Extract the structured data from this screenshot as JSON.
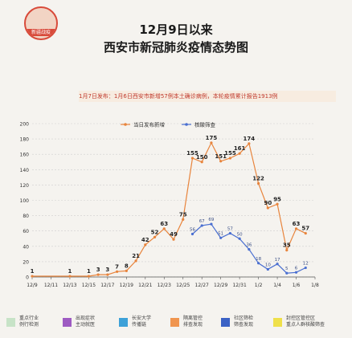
{
  "header": {
    "logo_text": "新疆战疫",
    "title_line1": "12月9日以来",
    "title_line2": "西安市新冠肺炎疫情态势图"
  },
  "notice": "1月7日发布：1月6日西安市新增57例本土确诊病例，本轮疫情累计报告1913例",
  "legend_bottom": [
    {
      "label": "重点行业 例行检测",
      "color": "#c7e3c7"
    },
    {
      "label": "出现症状 主动就医",
      "color": "#9e5bc2"
    },
    {
      "label": "长安大学 传播链",
      "color": "#3ea1d8"
    },
    {
      "label": "隔离管控 排查发现",
      "color": "#f0954f"
    },
    {
      "label": "社区筛检 筛查发现",
      "color": "#3b62c5"
    },
    {
      "label": "封控区管控区 重点人群核酸筛查",
      "color": "#efe04a"
    }
  ],
  "chart_data": {
    "type": "line",
    "ylim": [
      0,
      200
    ],
    "yticks": [
      0,
      20,
      40,
      60,
      80,
      100,
      120,
      140,
      160,
      180,
      200
    ],
    "x_tick_labels": [
      "12/9",
      "12/11",
      "12/13",
      "12/15",
      "12/17",
      "12/19",
      "12/21",
      "12/23",
      "12/25",
      "12/27",
      "12/29",
      "12/31",
      "1/2",
      "1/4",
      "1/6",
      "1/8"
    ],
    "legend": [
      {
        "name": "当日发布新增",
        "color": "#e8843c"
      },
      {
        "name": "核酸筛查",
        "color": "#4a6fd1"
      }
    ],
    "series": [
      {
        "name": "当日发布新增",
        "color": "#e8843c",
        "points": [
          {
            "x": "12/9",
            "y": 1
          },
          {
            "x": "12/13",
            "y": 1
          },
          {
            "x": "12/15",
            "y": 1
          },
          {
            "x": "12/16",
            "y": 3
          },
          {
            "x": "12/17",
            "y": 3
          },
          {
            "x": "12/18",
            "y": 7
          },
          {
            "x": "12/19",
            "y": 8
          },
          {
            "x": "12/20",
            "y": 21
          },
          {
            "x": "12/21",
            "y": 42
          },
          {
            "x": "12/22",
            "y": 52
          },
          {
            "x": "12/23",
            "y": 63
          },
          {
            "x": "12/24",
            "y": 49
          },
          {
            "x": "12/25",
            "y": 75
          },
          {
            "x": "12/26",
            "y": 155
          },
          {
            "x": "12/27",
            "y": 150
          },
          {
            "x": "12/28",
            "y": 175
          },
          {
            "x": "12/29",
            "y": 151
          },
          {
            "x": "12/30",
            "y": 155
          },
          {
            "x": "12/31",
            "y": 161
          },
          {
            "x": "1/1",
            "y": 174
          },
          {
            "x": "1/2",
            "y": 122
          },
          {
            "x": "1/3",
            "y": 90
          },
          {
            "x": "1/4",
            "y": 95
          },
          {
            "x": "1/5",
            "y": 35
          },
          {
            "x": "1/6",
            "y": 63
          },
          {
            "x": "1/7",
            "y": 57
          }
        ]
      },
      {
        "name": "核酸筛查",
        "color": "#4a6fd1",
        "points": [
          {
            "x": "12/26",
            "y": 56
          },
          {
            "x": "12/27",
            "y": 67
          },
          {
            "x": "12/28",
            "y": 69
          },
          {
            "x": "12/29",
            "y": 51
          },
          {
            "x": "12/30",
            "y": 57
          },
          {
            "x": "12/31",
            "y": 50
          },
          {
            "x": "1/1",
            "y": 36
          },
          {
            "x": "1/2",
            "y": 18
          },
          {
            "x": "1/3",
            "y": 10
          },
          {
            "x": "1/4",
            "y": 17
          },
          {
            "x": "1/5",
            "y": 5
          },
          {
            "x": "1/6",
            "y": 6
          },
          {
            "x": "1/7",
            "y": 12
          }
        ]
      }
    ]
  }
}
